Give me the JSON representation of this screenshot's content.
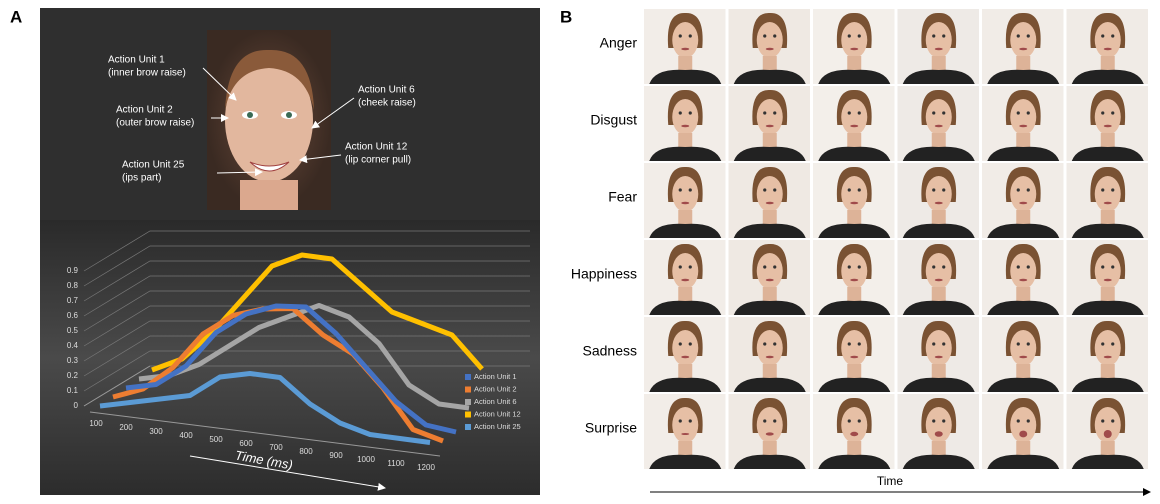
{
  "panel_a": {
    "label": "A",
    "face_annotations": [
      [
        "Action Unit 1",
        "(inner brow raise)"
      ],
      [
        "Action Unit 2",
        "(outer brow raise)"
      ],
      [
        "Action Unit 6",
        "(cheek raise)"
      ],
      [
        "Action Unit 12",
        "(lip corner pull)"
      ],
      [
        "Action Unit 25",
        "(ips part)"
      ]
    ]
  },
  "chart_data": {
    "type": "line3d",
    "x_label": "Time (ms)",
    "x": [
      100,
      200,
      300,
      400,
      500,
      600,
      700,
      800,
      900,
      1000,
      1100,
      1200
    ],
    "ylim": [
      0,
      0.9
    ],
    "yticks": [
      0,
      0.1,
      0.2,
      0.3,
      0.4,
      0.5,
      0.6,
      0.7,
      0.8,
      0.9
    ],
    "grid": true,
    "legend": "right",
    "series": [
      {
        "name": "Action Unit 1",
        "color": "#4472c4",
        "values": [
          0,
          0.05,
          0.2,
          0.45,
          0.6,
          0.68,
          0.7,
          0.55,
          0.35,
          0.15,
          0.02,
          0
        ]
      },
      {
        "name": "Action Unit 2",
        "color": "#ed7d31",
        "values": [
          0,
          0.08,
          0.25,
          0.5,
          0.65,
          0.72,
          0.75,
          0.6,
          0.5,
          0.3,
          0.05,
          0
        ]
      },
      {
        "name": "Action Unit 6",
        "color": "#a5a5a5",
        "values": [
          0,
          0.05,
          0.15,
          0.3,
          0.45,
          0.55,
          0.65,
          0.6,
          0.45,
          0.2,
          0.1,
          0.1
        ]
      },
      {
        "name": "Action Unit 12",
        "color": "#ffc000",
        "values": [
          0,
          0.1,
          0.3,
          0.55,
          0.8,
          0.9,
          0.9,
          0.75,
          0.6,
          0.55,
          0.5,
          0.3
        ]
      },
      {
        "name": "Action Unit 25",
        "color": "#5b9bd5",
        "values": [
          0,
          0.05,
          0.1,
          0.15,
          0.3,
          0.35,
          0.35,
          0.2,
          0.1,
          0.05,
          0.05,
          0.05
        ]
      }
    ]
  },
  "panel_b": {
    "label": "B",
    "emotions": [
      "Anger",
      "Disgust",
      "Fear",
      "Happiness",
      "Sadness",
      "Surprise"
    ],
    "time_label": "Time"
  }
}
